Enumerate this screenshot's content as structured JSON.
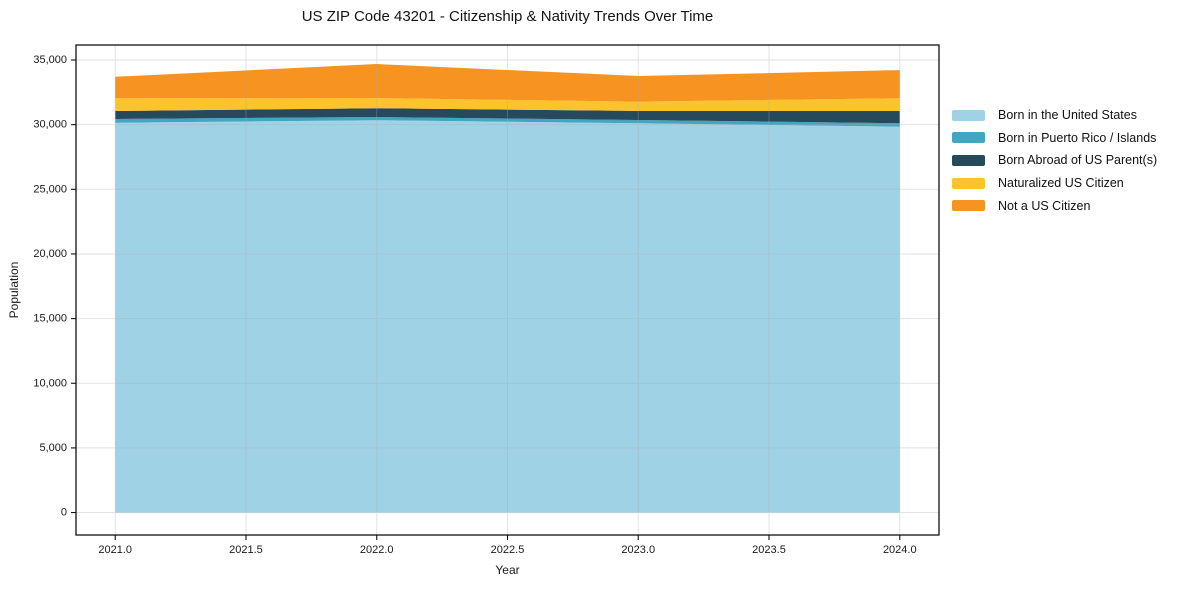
{
  "title": "US ZIP Code 43201 - Citizenship & Nativity Trends Over Time",
  "chart_data": {
    "type": "area",
    "stacked": true,
    "title": "US ZIP Code 43201 - Citizenship & Nativity Trends Over Time",
    "xlabel": "Year",
    "ylabel": "Population",
    "x": [
      2021,
      2022,
      2023,
      2024
    ],
    "series": [
      {
        "name": "Born in the United States",
        "color": "#A0D2E6",
        "values": [
          30150,
          30340,
          30110,
          29850
        ]
      },
      {
        "name": "Born in Puerto Rico / Islands",
        "color": "#41A6C1",
        "values": [
          290,
          250,
          250,
          260
        ]
      },
      {
        "name": "Born Abroad of US Parent(s)",
        "color": "#26495C",
        "values": [
          620,
          680,
          700,
          950
        ]
      },
      {
        "name": "Naturalized US Citizen",
        "color": "#FCC32D",
        "values": [
          980,
          790,
          720,
          980
        ]
      },
      {
        "name": "Not a US Citizen",
        "color": "#F79321",
        "values": [
          1660,
          2630,
          1980,
          2180
        ]
      }
    ],
    "stack_totals": [
      33700,
      34690,
      33760,
      34220
    ],
    "xlim": [
      2020.85,
      2024.15
    ],
    "ylim": [
      -1735,
      36160
    ],
    "xticks": [
      2021.0,
      2021.5,
      2022.0,
      2022.5,
      2023.0,
      2023.5,
      2024.0
    ],
    "yticks": [
      0,
      5000,
      10000,
      15000,
      20000,
      25000,
      30000,
      35000
    ],
    "grid": true,
    "grid_on_top": true,
    "legend_position": "center right, frameless",
    "colors": {
      "frame": "#111111",
      "tick_label": "#191919",
      "gridline": "#aaaaaa"
    }
  }
}
